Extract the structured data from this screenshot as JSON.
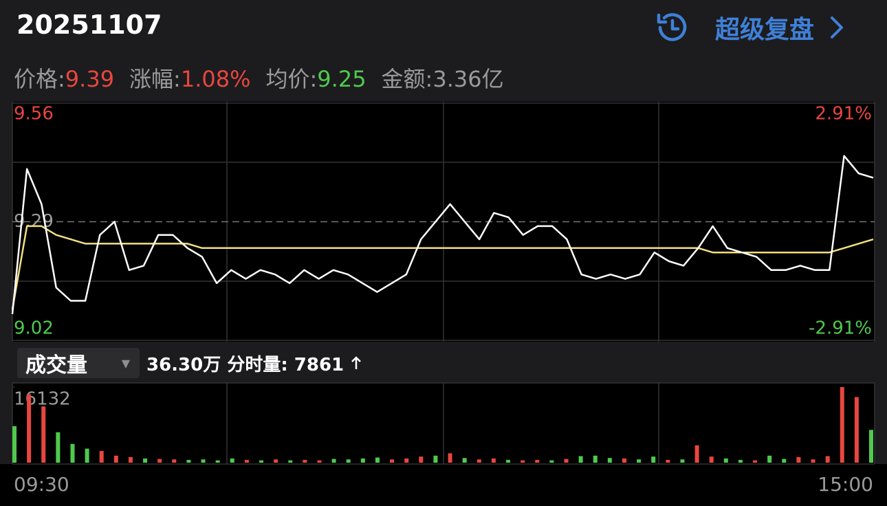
{
  "header": {
    "title": "20251107",
    "action": "超级复盘"
  },
  "info": [
    {
      "label": "价格:",
      "value": "9.39",
      "color": "#e8463f"
    },
    {
      "label": "涨幅:",
      "value": "1.08%",
      "color": "#e8463f"
    },
    {
      "label": "均价:",
      "value": "9.25",
      "color": "#4fca4d"
    },
    {
      "label": "金额:",
      "value": "3.36亿",
      "color": "#9a9a9a"
    }
  ],
  "volume_bar": {
    "selector": "成交量",
    "total": "36.30万",
    "tick_label": "分时量:",
    "tick_value": "7861"
  },
  "chart_data": [
    {
      "type": "line",
      "ylim": [
        9.02,
        9.56
      ],
      "yticks": [
        9.02,
        9.29,
        9.56
      ],
      "y2lim": [
        -2.91,
        2.91
      ],
      "y2ticks": [
        {
          "value": -2.91,
          "label": "-2.91%"
        },
        {
          "value": 2.91,
          "label": "2.91%"
        }
      ],
      "up_color": "#e8463f",
      "down_color": "#4fca4d",
      "flat_color": "#9a9a9a",
      "series": [
        {
          "color": "#ffffff",
          "values": [
            9.08,
            9.41,
            9.33,
            9.14,
            9.11,
            9.11,
            9.26,
            9.29,
            9.18,
            9.19,
            9.26,
            9.26,
            9.23,
            9.21,
            9.15,
            9.18,
            9.16,
            9.18,
            9.17,
            9.15,
            9.18,
            9.16,
            9.18,
            9.17,
            9.15,
            9.13,
            9.15,
            9.17,
            9.25,
            9.29,
            9.33,
            9.29,
            9.25,
            9.31,
            9.3,
            9.26,
            9.28,
            9.28,
            9.25,
            9.17,
            9.16,
            9.17,
            9.16,
            9.17,
            9.22,
            9.2,
            9.19,
            9.23,
            9.28,
            9.23,
            9.22,
            9.21,
            9.18,
            9.18,
            9.19,
            9.18,
            9.18,
            9.44,
            9.4,
            9.39
          ]
        },
        {
          "color": "#f3e07f",
          "values": [
            9.09,
            9.28,
            9.28,
            9.26,
            9.25,
            9.24,
            9.24,
            9.24,
            9.24,
            9.24,
            9.24,
            9.24,
            9.24,
            9.23,
            9.23,
            9.23,
            9.23,
            9.23,
            9.23,
            9.23,
            9.23,
            9.23,
            9.23,
            9.23,
            9.23,
            9.23,
            9.23,
            9.23,
            9.23,
            9.23,
            9.23,
            9.23,
            9.23,
            9.23,
            9.23,
            9.23,
            9.23,
            9.23,
            9.23,
            9.23,
            9.23,
            9.23,
            9.23,
            9.23,
            9.23,
            9.23,
            9.23,
            9.23,
            9.22,
            9.22,
            9.22,
            9.22,
            9.22,
            9.22,
            9.22,
            9.22,
            9.22,
            9.23,
            9.24,
            9.25
          ]
        }
      ]
    },
    {
      "type": "bar",
      "categories": [
        "09:30",
        null,
        null,
        null,
        null,
        null,
        null,
        null,
        null,
        null,
        null,
        null,
        null,
        null,
        null,
        null,
        null,
        null,
        null,
        null,
        null,
        null,
        null,
        null,
        null,
        null,
        null,
        null,
        null,
        null,
        null,
        null,
        null,
        null,
        null,
        null,
        null,
        null,
        null,
        null,
        null,
        null,
        null,
        null,
        null,
        null,
        null,
        null,
        null,
        null,
        null,
        null,
        null,
        null,
        null,
        null,
        null,
        null,
        null,
        "15:00"
      ],
      "values": [
        7800,
        14600,
        12000,
        6500,
        4000,
        3000,
        2500,
        1500,
        1200,
        900,
        800,
        700,
        600,
        700,
        500,
        900,
        600,
        500,
        700,
        500,
        600,
        500,
        800,
        700,
        900,
        1100,
        700,
        900,
        1300,
        1500,
        2000,
        1000,
        700,
        900,
        600,
        500,
        600,
        500,
        800,
        1400,
        1500,
        1000,
        900,
        700,
        1300,
        600,
        700,
        3700,
        1300,
        900,
        600,
        500,
        1500,
        800,
        1200,
        700,
        1400,
        16132,
        14000,
        7000
      ],
      "colors": [
        "#4fca4d",
        "#e8463f",
        "#e8463f",
        "#4fca4d",
        "#4fca4d",
        "#4fca4d",
        "#e8463f",
        "#e8463f",
        "#e8463f",
        "#4fca4d",
        "#e8463f",
        "#e8463f",
        "#4fca4d",
        "#4fca4d",
        "#4fca4d",
        "#4fca4d",
        "#e8463f",
        "#4fca4d",
        "#e8463f",
        "#4fca4d",
        "#e8463f",
        "#e8463f",
        "#4fca4d",
        "#4fca4d",
        "#4fca4d",
        "#4fca4d",
        "#e8463f",
        "#e8463f",
        "#e8463f",
        "#4fca4d",
        "#e8463f",
        "#4fca4d",
        "#e8463f",
        "#e8463f",
        "#4fca4d",
        "#e8463f",
        "#e8463f",
        "#4fca4d",
        "#e8463f",
        "#4fca4d",
        "#4fca4d",
        "#4fca4d",
        "#e8463f",
        "#4fca4d",
        "#4fca4d",
        "#e8463f",
        "#4fca4d",
        "#e8463f",
        "#e8463f",
        "#4fca4d",
        "#4fca4d",
        "#e8463f",
        "#4fca4d",
        "#4fca4d",
        "#e8463f",
        "#e8463f",
        "#e8463f",
        "#e8463f",
        "#e8463f",
        "#4fca4d"
      ],
      "ylim": [
        0,
        16132
      ],
      "yticks": [
        16132
      ],
      "tick_color": "#9a9a9a"
    }
  ]
}
